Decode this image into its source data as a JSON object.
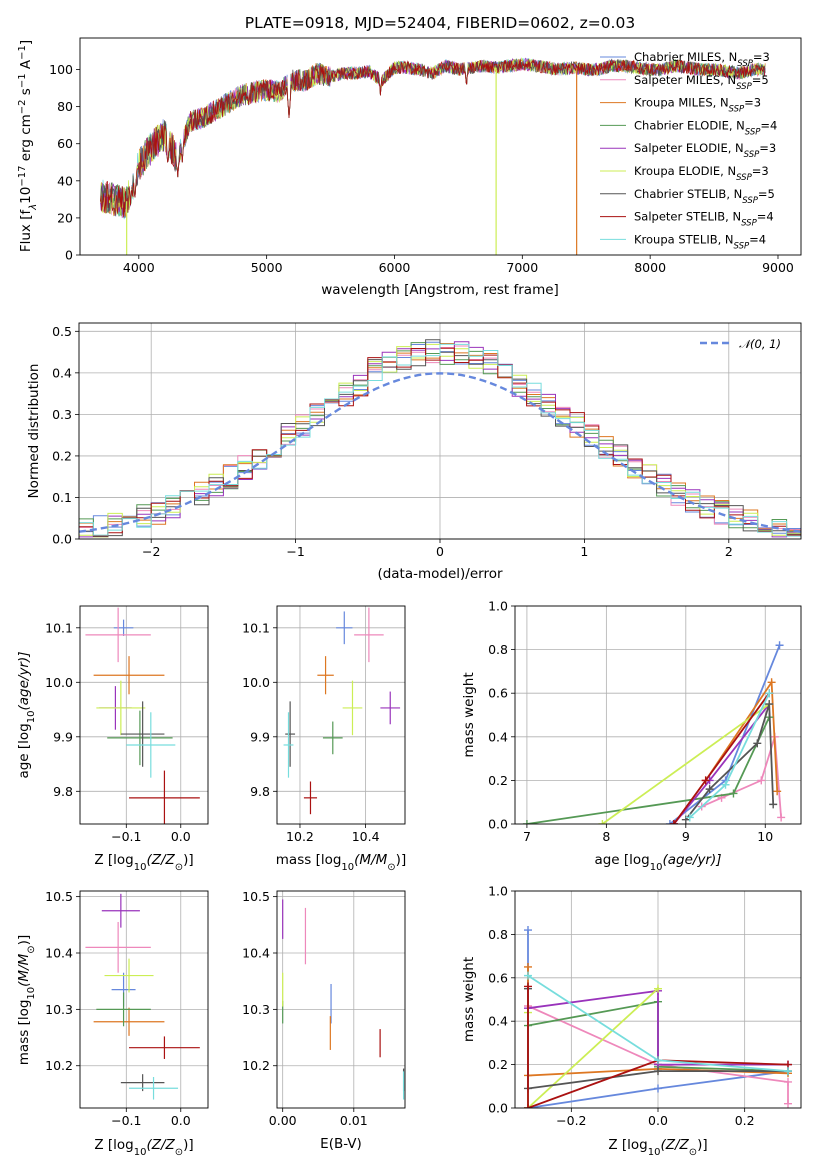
{
  "title": "PLATE=0918, MJD=52404, FIBERID=0602, z=0.03",
  "models": [
    {
      "name": "Chabrier MILES",
      "nssp": "3",
      "color": "#6688dd"
    },
    {
      "name": "Salpeter MILES",
      "nssp": "5",
      "color": "#ee88bb"
    },
    {
      "name": "Kroupa MILES",
      "nssp": "3",
      "color": "#dd7722"
    },
    {
      "name": "Chabrier ELODIE",
      "nssp": "4",
      "color": "#559955"
    },
    {
      "name": "Salpeter ELODIE",
      "nssp": "3",
      "color": "#9933bb"
    },
    {
      "name": "Kroupa ELODIE",
      "nssp": "3",
      "color": "#ccee55"
    },
    {
      "name": "Chabrier STELIB",
      "nssp": "5",
      "color": "#555555"
    },
    {
      "name": "Salpeter STELIB",
      "nssp": "4",
      "color": "#aa1111"
    },
    {
      "name": "Kroupa STELIB",
      "nssp": "4",
      "color": "#77dddd"
    }
  ],
  "chart_data": [
    {
      "id": "spectrum",
      "type": "line",
      "xlabel": "wavelength [Angstrom, rest frame]",
      "ylabel_main": "Flux [f",
      "ylabel_sub": "λ",
      "ylabel_rest": "10",
      "ylabel_exp1": "−17",
      "ylabel_unit": " erg cm",
      "ylabel_exp2": "−2",
      "ylabel_unit2": " s",
      "ylabel_exp3": "−1",
      "ylabel_unit3": " A",
      "ylabel_exp4": "−1",
      "ylabel_end": "]",
      "xlim": [
        3540,
        9180
      ],
      "ylim": [
        0,
        117
      ],
      "xticks": [
        4000,
        5000,
        6000,
        7000,
        8000,
        9000
      ],
      "yticks": [
        0,
        20,
        40,
        60,
        80,
        100
      ],
      "legend_position": "upper-right",
      "envelope": [
        [
          3700,
          32
        ],
        [
          3800,
          30
        ],
        [
          3900,
          28
        ],
        [
          4000,
          48
        ],
        [
          4100,
          58
        ],
        [
          4200,
          65
        ],
        [
          4300,
          52
        ],
        [
          4400,
          72
        ],
        [
          4500,
          74
        ],
        [
          4600,
          78
        ],
        [
          4700,
          82
        ],
        [
          4800,
          86
        ],
        [
          4900,
          88
        ],
        [
          5000,
          89
        ],
        [
          5100,
          88
        ],
        [
          5200,
          94
        ],
        [
          5300,
          94
        ],
        [
          5400,
          98
        ],
        [
          5500,
          96
        ],
        [
          5600,
          98
        ],
        [
          5700,
          98
        ],
        [
          5800,
          99
        ],
        [
          5900,
          94
        ],
        [
          6000,
          101
        ],
        [
          6100,
          101
        ],
        [
          6200,
          100
        ],
        [
          6300,
          98
        ],
        [
          6400,
          102
        ],
        [
          6500,
          100
        ],
        [
          6600,
          101
        ],
        [
          6700,
          102
        ],
        [
          6800,
          101
        ],
        [
          6900,
          102
        ],
        [
          7000,
          103
        ],
        [
          7100,
          102
        ],
        [
          7200,
          101
        ],
        [
          7300,
          100
        ],
        [
          7400,
          101
        ],
        [
          7500,
          100
        ],
        [
          7600,
          100
        ],
        [
          7700,
          102
        ],
        [
          7800,
          102
        ],
        [
          7900,
          101
        ],
        [
          8000,
          100
        ],
        [
          8100,
          100
        ],
        [
          8200,
          102
        ],
        [
          8300,
          101
        ],
        [
          8400,
          100
        ],
        [
          8500,
          100
        ],
        [
          8600,
          99
        ],
        [
          8700,
          98
        ],
        [
          8800,
          100
        ],
        [
          8900,
          100
        ]
      ],
      "absorption_dips": [
        [
          3934,
          28
        ],
        [
          3969,
          30
        ],
        [
          4102,
          58
        ],
        [
          4227,
          48
        ],
        [
          4305,
          42
        ],
        [
          4340,
          50
        ],
        [
          4861,
          80
        ],
        [
          5175,
          74
        ],
        [
          5270,
          90
        ],
        [
          5890,
          86
        ],
        [
          6563,
          90
        ]
      ],
      "dropouts": [
        {
          "x": 3905,
          "model": 5
        },
        {
          "x": 6795,
          "model": 5
        },
        {
          "x": 7425,
          "model": 2
        }
      ]
    },
    {
      "id": "residual-histogram",
      "type": "step-histogram",
      "xlabel": "(data-model)/error",
      "ylabel": "Normed distribution",
      "xlim": [
        -2.5,
        2.5
      ],
      "ylim": [
        0,
        0.52
      ],
      "xticks": [
        -2,
        -1,
        0,
        1,
        2
      ],
      "yticks": [
        0.0,
        0.1,
        0.2,
        0.3,
        0.4,
        0.5
      ],
      "bin_width": 0.1,
      "reference_label": "𝒩(0, 1)",
      "reference_color": "#6688dd",
      "legend_position": "upper-right"
    },
    {
      "id": "age-vs-metallicity",
      "type": "errorbar",
      "xlabel_main": "Z [log",
      "xlabel_sub": "10",
      "xlabel_rest": "(Z/Z",
      "xlabel_sun": "⊙",
      "xlabel_end": ")]",
      "ylabel_main": "age  [log",
      "ylabel_sub": "10",
      "ylabel_end": "(age/yr)]",
      "xlim": [
        -0.185,
        0.05
      ],
      "ylim": [
        9.74,
        10.14
      ],
      "xticks": [
        -0.1,
        0.0
      ],
      "yticks": [
        9.8,
        9.9,
        10.0,
        10.1
      ],
      "points": [
        {
          "model": 0,
          "x": -0.105,
          "xerr": 0.018,
          "y": 10.1,
          "yerr": 0.015
        },
        {
          "model": 1,
          "x": -0.115,
          "xerr": 0.06,
          "y": 10.087,
          "yerr": 0.05
        },
        {
          "model": 2,
          "x": -0.095,
          "xerr": 0.065,
          "y": 10.013,
          "yerr": 0.035
        },
        {
          "model": 3,
          "x": -0.075,
          "xerr": 0.06,
          "y": 9.898,
          "yerr": 0.05
        },
        {
          "model": 4,
          "x": -0.12,
          "xerr": 0.03,
          "y": 9.953,
          "yerr": 0.04
        },
        {
          "model": 5,
          "x": -0.11,
          "xerr": 0.045,
          "y": 9.953,
          "yerr": 0.05
        },
        {
          "model": 6,
          "x": -0.07,
          "xerr": 0.04,
          "y": 9.905,
          "yerr": 0.06
        },
        {
          "model": 7,
          "x": -0.03,
          "xerr": 0.065,
          "y": 9.788,
          "yerr": 0.05
        },
        {
          "model": 8,
          "x": -0.055,
          "xerr": 0.045,
          "y": 9.885,
          "yerr": 0.06
        }
      ]
    },
    {
      "id": "age-vs-mass",
      "type": "errorbar",
      "xlabel_main": "mass [log",
      "xlabel_sub": "10",
      "xlabel_rest": "(M/M",
      "xlabel_sun": "⊙",
      "xlabel_end": ")]",
      "xlim": [
        10.13,
        10.52
      ],
      "ylim": [
        9.74,
        10.14
      ],
      "xticks": [
        10.2,
        10.4
      ],
      "yticks": [
        9.8,
        9.9,
        10.0,
        10.1
      ],
      "points": [
        {
          "model": 0,
          "x": 10.335,
          "xerr": 0.025,
          "y": 10.1,
          "yerr": 0.03
        },
        {
          "model": 1,
          "x": 10.41,
          "xerr": 0.045,
          "y": 10.087,
          "yerr": 0.05
        },
        {
          "model": 2,
          "x": 10.278,
          "xerr": 0.025,
          "y": 10.013,
          "yerr": 0.035
        },
        {
          "model": 3,
          "x": 10.3,
          "xerr": 0.03,
          "y": 9.898,
          "yerr": 0.03
        },
        {
          "model": 4,
          "x": 10.475,
          "xerr": 0.03,
          "y": 9.953,
          "yerr": 0.03
        },
        {
          "model": 5,
          "x": 10.36,
          "xerr": 0.03,
          "y": 9.953,
          "yerr": 0.05
        },
        {
          "model": 6,
          "x": 10.17,
          "xerr": 0.015,
          "y": 9.905,
          "yerr": 0.06
        },
        {
          "model": 7,
          "x": 10.232,
          "xerr": 0.02,
          "y": 9.788,
          "yerr": 0.03
        },
        {
          "model": 8,
          "x": 10.165,
          "xerr": 0.015,
          "y": 9.885,
          "yerr": 0.06
        }
      ]
    },
    {
      "id": "mass-weight-vs-age",
      "type": "line",
      "xlabel_main": "age  [log",
      "xlabel_sub": "10",
      "xlabel_end": "(age/yr)]",
      "ylabel": "mass weight",
      "xlim": [
        6.85,
        10.45
      ],
      "ylim": [
        0.0,
        1.0
      ],
      "xticks": [
        7,
        8,
        9,
        10
      ],
      "yticks": [
        0.0,
        0.2,
        0.4,
        0.6,
        0.8,
        1.0
      ],
      "series": [
        {
          "model": 0,
          "x": [
            8.8,
            9.5,
            10.18
          ],
          "y": [
            0.0,
            0.2,
            0.82
          ]
        },
        {
          "model": 1,
          "x": [
            9.2,
            9.45,
            9.95,
            10.12,
            10.2
          ],
          "y": [
            0.08,
            0.12,
            0.2,
            0.4,
            0.03
          ]
        },
        {
          "model": 2,
          "x": [
            8.85,
            9.25,
            10.08,
            10.15
          ],
          "y": [
            0.0,
            0.2,
            0.65,
            0.15
          ]
        },
        {
          "model": 3,
          "x": [
            7.0,
            9.6,
            10.05
          ],
          "y": [
            0.0,
            0.14,
            0.49
          ]
        },
        {
          "model": 4,
          "x": [
            8.85,
            9.3,
            10.05
          ],
          "y": [
            0.0,
            0.2,
            0.55
          ]
        },
        {
          "model": 5,
          "x": [
            7.95,
            10.05
          ],
          "y": [
            0.0,
            0.55
          ]
        },
        {
          "model": 6,
          "x": [
            9.0,
            9.3,
            9.9,
            10.05,
            10.1
          ],
          "y": [
            0.02,
            0.16,
            0.37,
            0.55,
            0.09
          ]
        },
        {
          "model": 7,
          "x": [
            8.85,
            9.25,
            10.05
          ],
          "y": [
            0.0,
            0.2,
            0.6
          ]
        },
        {
          "model": 8,
          "x": [
            9.05,
            9.5,
            10.05
          ],
          "y": [
            0.03,
            0.18,
            0.6
          ]
        }
      ]
    },
    {
      "id": "mass-vs-metallicity",
      "type": "errorbar",
      "xlabel_main": "Z [log",
      "xlabel_sub": "10",
      "xlabel_rest": "(Z/Z",
      "xlabel_sun": "⊙",
      "xlabel_end": ")]",
      "ylabel_main": "mass [log",
      "ylabel_sub": "10",
      "ylabel_rest": "(M/M",
      "ylabel_sun": "⊙",
      "ylabel_end": ")]",
      "xlim": [
        -0.185,
        0.05
      ],
      "ylim": [
        10.125,
        10.51
      ],
      "xticks": [
        -0.1,
        0.0
      ],
      "yticks": [
        10.2,
        10.3,
        10.4,
        10.5
      ],
      "points": [
        {
          "model": 0,
          "x": -0.105,
          "xerr": 0.022,
          "y": 10.335,
          "yerr": 0.03
        },
        {
          "model": 1,
          "x": -0.115,
          "xerr": 0.06,
          "y": 10.41,
          "yerr": 0.045
        },
        {
          "model": 2,
          "x": -0.095,
          "xerr": 0.065,
          "y": 10.278,
          "yerr": 0.025
        },
        {
          "model": 3,
          "x": -0.105,
          "xerr": 0.05,
          "y": 10.3,
          "yerr": 0.03
        },
        {
          "model": 4,
          "x": -0.11,
          "xerr": 0.035,
          "y": 10.475,
          "yerr": 0.03
        },
        {
          "model": 5,
          "x": -0.095,
          "xerr": 0.045,
          "y": 10.36,
          "yerr": 0.03
        },
        {
          "model": 6,
          "x": -0.07,
          "xerr": 0.04,
          "y": 10.17,
          "yerr": 0.015
        },
        {
          "model": 7,
          "x": -0.03,
          "xerr": 0.065,
          "y": 10.232,
          "yerr": 0.02
        },
        {
          "model": 8,
          "x": -0.05,
          "xerr": 0.045,
          "y": 10.16,
          "yerr": 0.02
        }
      ]
    },
    {
      "id": "mass-vs-ebv",
      "type": "errorbar",
      "xlabel": "E(B-V)",
      "xlim": [
        -0.0008,
        0.0172
      ],
      "ylim": [
        10.125,
        10.51
      ],
      "xticks": [
        0.0,
        0.01
      ],
      "yticks": [
        10.2,
        10.3,
        10.4,
        10.5
      ],
      "points": [
        {
          "model": 0,
          "x": 0.0068,
          "xerr": 0,
          "y": 10.31,
          "yerr": 0.035
        },
        {
          "model": 1,
          "x": 0.0032,
          "xerr": 0,
          "y": 10.43,
          "yerr": 0.05
        },
        {
          "model": 2,
          "x": 0.0067,
          "xerr": 0,
          "y": 10.258,
          "yerr": 0.03
        },
        {
          "model": 3,
          "x": 0.0,
          "xerr": 0,
          "y": 10.295,
          "yerr": 0.02
        },
        {
          "model": 4,
          "x": 0.0,
          "xerr": 0,
          "y": 10.46,
          "yerr": 0.035
        },
        {
          "model": 5,
          "x": 0.0,
          "xerr": 0,
          "y": 10.335,
          "yerr": 0.03
        },
        {
          "model": 6,
          "x": 0.017,
          "xerr": 0,
          "y": 10.175,
          "yerr": 0.02
        },
        {
          "model": 7,
          "x": 0.0137,
          "xerr": 0,
          "y": 10.24,
          "yerr": 0.025
        },
        {
          "model": 8,
          "x": 0.017,
          "xerr": 0,
          "y": 10.165,
          "yerr": 0.025
        }
      ]
    },
    {
      "id": "mass-weight-vs-metallicity",
      "type": "line",
      "xlabel_main": "Z [log",
      "xlabel_sub": "10",
      "xlabel_rest": "(Z/Z",
      "xlabel_sun": "⊙",
      "xlabel_end": ")]",
      "ylabel": "mass weight",
      "xlim": [
        -0.33,
        0.33
      ],
      "ylim": [
        0.0,
        1.0
      ],
      "xticks": [
        -0.2,
        0.0,
        0.2
      ],
      "yticks": [
        0.0,
        0.2,
        0.4,
        0.6,
        0.8,
        1.0
      ],
      "series": [
        {
          "model": 0,
          "x": [
            -0.3,
            -0.3,
            0.0,
            0.3
          ],
          "y": [
            0.82,
            0.0,
            0.09,
            0.17
          ]
        },
        {
          "model": 1,
          "x": [
            -0.3,
            0.0,
            0.3,
            0.3
          ],
          "y": [
            0.47,
            0.2,
            0.12,
            0.02
          ]
        },
        {
          "model": 2,
          "x": [
            -0.3,
            -0.3,
            0.0,
            0.3
          ],
          "y": [
            0.65,
            0.15,
            0.18,
            0.16
          ]
        },
        {
          "model": 3,
          "x": [
            -0.3,
            0.0,
            0.0,
            0.3
          ],
          "y": [
            0.38,
            0.49,
            0.19,
            0.17
          ]
        },
        {
          "model": 4,
          "x": [
            -0.3,
            0.0,
            0.0,
            0.3
          ],
          "y": [
            0.46,
            0.54,
            0.2,
            0.2
          ]
        },
        {
          "model": 5,
          "x": [
            -0.3,
            -0.3,
            0.0
          ],
          "y": [
            0.44,
            0.0,
            0.55
          ]
        },
        {
          "model": 6,
          "x": [
            -0.3,
            -0.3,
            0.0,
            0.3
          ],
          "y": [
            0.55,
            0.09,
            0.17,
            0.17
          ]
        },
        {
          "model": 7,
          "x": [
            -0.3,
            -0.3,
            0.0,
            0.3
          ],
          "y": [
            0.56,
            0.0,
            0.22,
            0.2
          ]
        },
        {
          "model": 8,
          "x": [
            -0.3,
            0.0,
            0.3
          ],
          "y": [
            0.61,
            0.22,
            0.17
          ]
        }
      ]
    }
  ]
}
